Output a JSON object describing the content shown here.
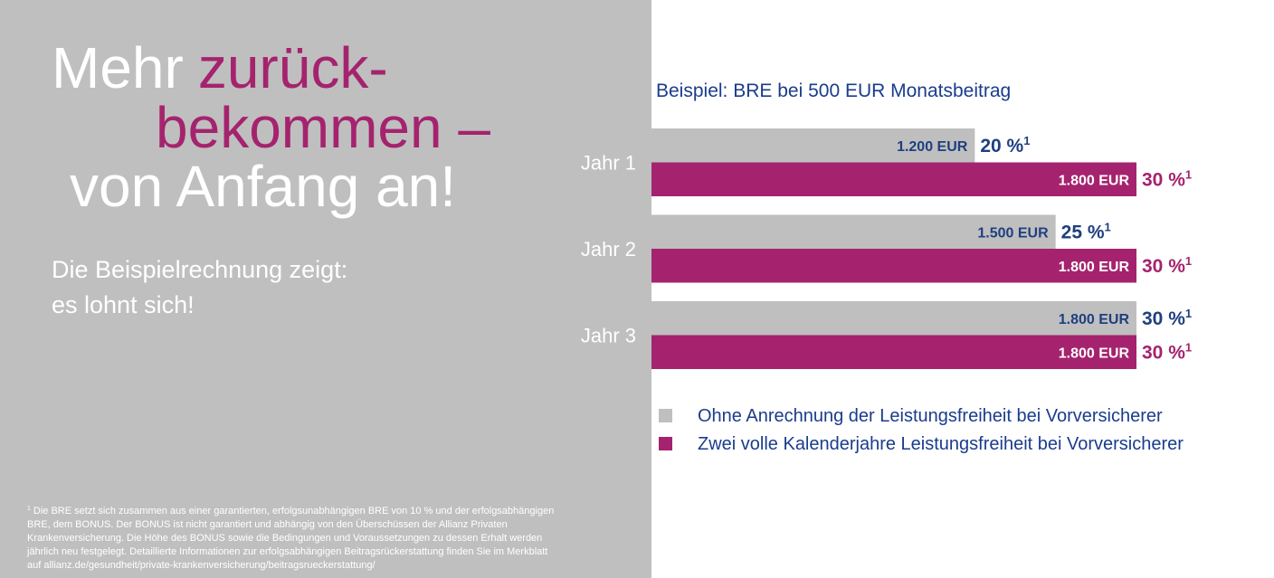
{
  "left": {
    "headline": {
      "line1_a": "Mehr",
      "line1_b": "zurück-",
      "line2": "bekommen –",
      "line3": "von Anfang an!"
    },
    "subtitle": [
      "Die Beispielrechnung zeigt:",
      "es lohnt sich!"
    ],
    "footnote": {
      "marker": "1",
      "lines": [
        "Die BRE setzt sich zusammen aus einer garantierten, erfolgsunabhängigen BRE von 10 % und der erfolgsabhängigen",
        "BRE, dem BONUS. Der BONUS ist nicht garantiert und abhängig von den Überschüssen der Allianz Privaten",
        "Krankenversicherung. Die Höhe des BONUS sowie die Bedingungen und Voraussetzungen zu dessen Erhalt werden",
        "jährlich neu festgelegt. Detaillierte Informationen zur erfolgsabhängigen Beitragsrückerstattung finden Sie im Merkblatt",
        "auf allianz.de/gesundheit/private-krankenversicherung/beitragsrueckerstattung/"
      ]
    }
  },
  "chart_data": {
    "type": "bar",
    "orientation": "horizontal",
    "title": "Beispiel: BRE bei 500 EUR Monatsbeitrag",
    "categories": [
      "Jahr 1",
      "Jahr 2",
      "Jahr 3"
    ],
    "xlim": [
      0,
      1800
    ],
    "footnote_marker": "1",
    "series": [
      {
        "name": "Ohne Anrechnung der Leistungsfreiheit bei Vorversicherer",
        "color": "#bfbfbf",
        "label_color": "#1f3f7f",
        "percent_color": "#1f3f7f",
        "values": [
          1200,
          1500,
          1800
        ],
        "value_labels": [
          "1.200 EUR",
          "1.500 EUR",
          "1.800 EUR"
        ],
        "percent_labels": [
          "20 %",
          "25 %",
          "30 %"
        ]
      },
      {
        "name": "Zwei volle Kalenderjahre Leistungsfreiheit bei Vorversicherer",
        "color": "#a5236e",
        "label_color": "#ffffff",
        "percent_color": "#a5236e",
        "values": [
          1800,
          1800,
          1800
        ],
        "value_labels": [
          "1.800 EUR",
          "1.800 EUR",
          "1.800 EUR"
        ],
        "percent_labels": [
          "30 %",
          "30 %",
          "30 %"
        ]
      }
    ]
  }
}
